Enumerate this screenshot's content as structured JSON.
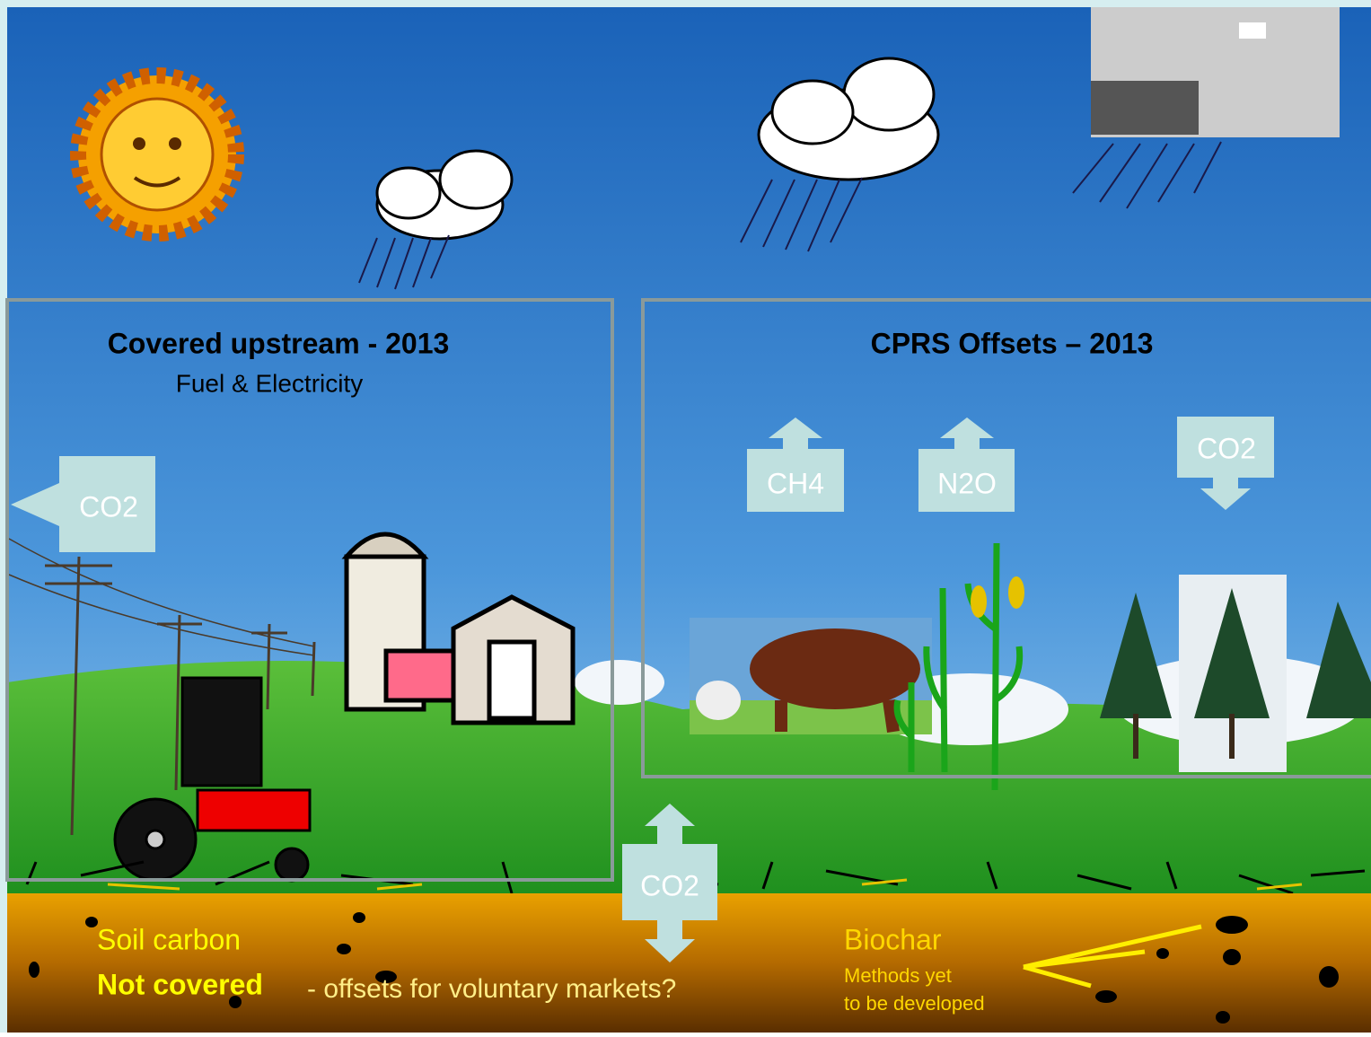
{
  "left_panel": {
    "title": "Covered upstream  - 2013",
    "subtitle": "Fuel & Electricity",
    "arrow": "CO2"
  },
  "right_panel": {
    "title": "CPRS Offsets – 2013",
    "arrows": [
      "CH4",
      "N2O",
      "CO2"
    ]
  },
  "soil_arrow": "CO2",
  "soil": {
    "title": "Soil carbon",
    "status": "Not covered",
    "note": "- offsets for voluntary markets?"
  },
  "biochar": {
    "title": "Biochar",
    "lines": [
      "Methods yet",
      "to be developed"
    ]
  }
}
